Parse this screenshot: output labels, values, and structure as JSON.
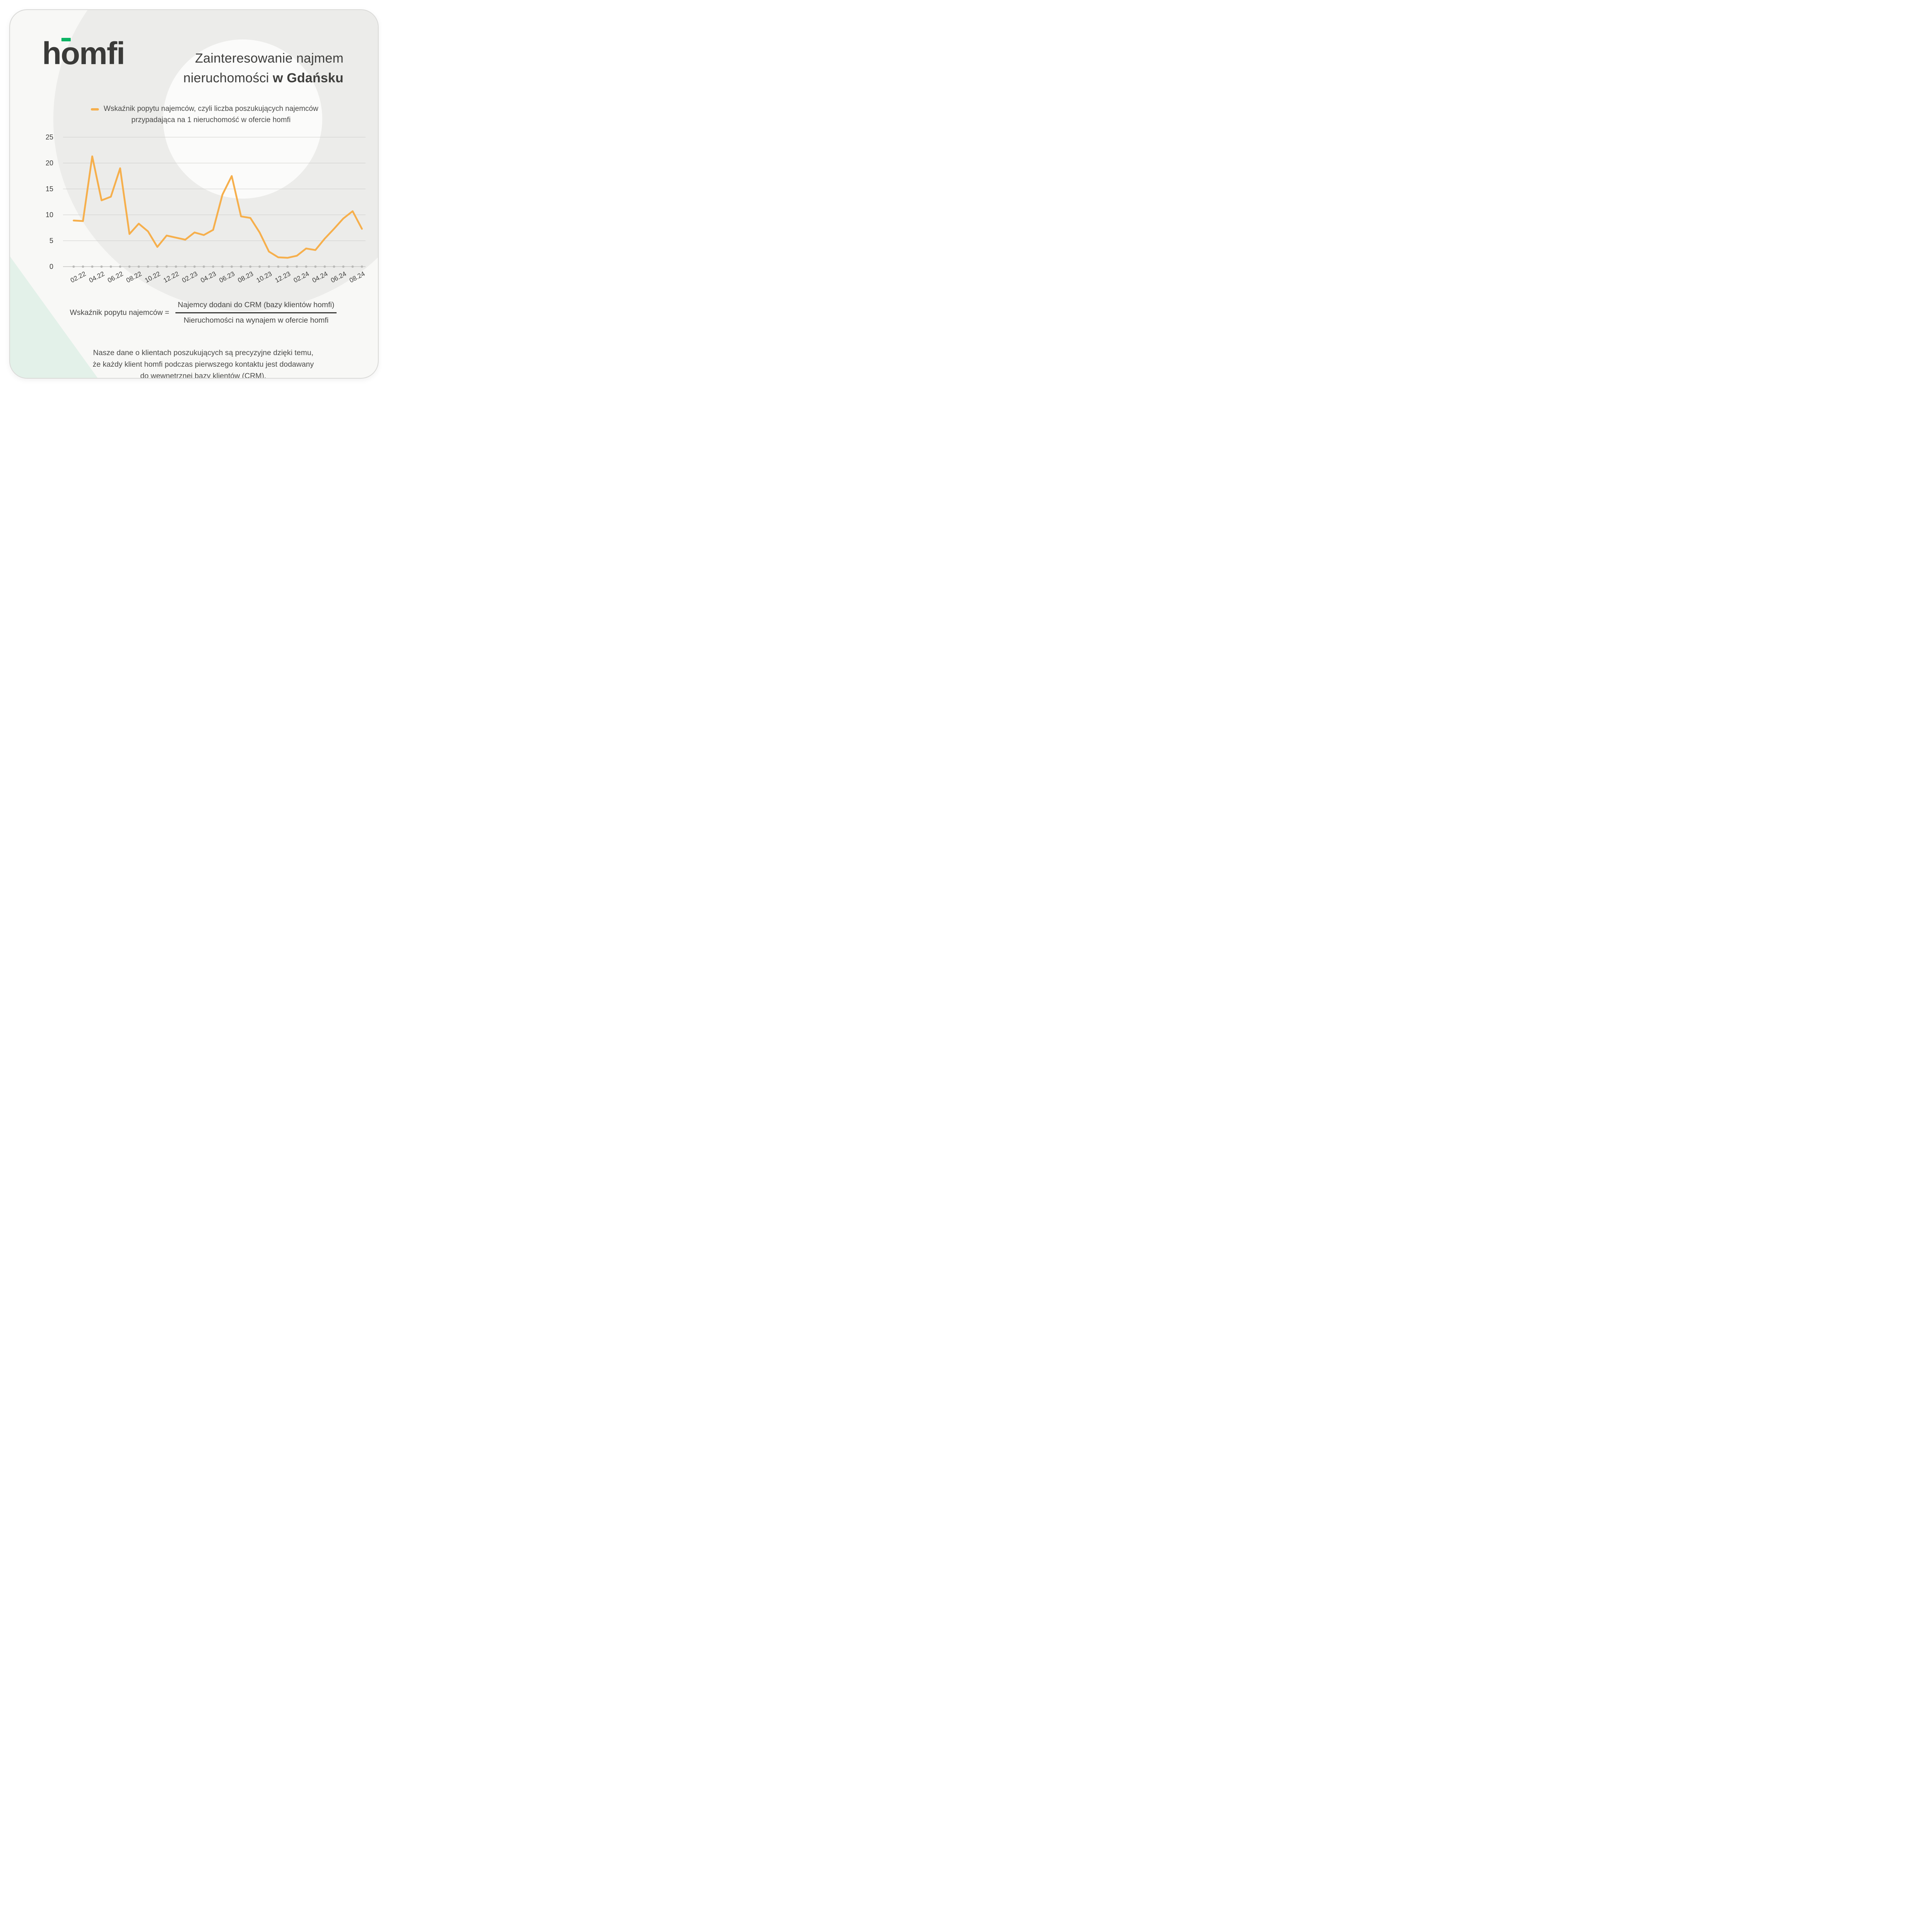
{
  "logo": {
    "text": "homfi",
    "accent_color": "#0cb464"
  },
  "title": {
    "line1": "Zainteresowanie najmem",
    "line2_regular": "nieruchomości ",
    "line2_bold": "w Gdańsku"
  },
  "legend": {
    "line1": "Wskaźnik popytu najemców, czyli liczba poszukujących najemców",
    "line2": "przypadająca na 1 nieruchomość w ofercie homfi"
  },
  "chart_data": {
    "type": "line",
    "series_name": "Wskaźnik popytu najemców",
    "x": [
      "01.22",
      "02.22",
      "03.22",
      "04.22",
      "05.22",
      "06.22",
      "07.22",
      "08.22",
      "09.22",
      "10.22",
      "11.22",
      "12.22",
      "01.23",
      "02.23",
      "03.23",
      "04.23",
      "05.23",
      "06.23",
      "07.23",
      "08.23",
      "09.23",
      "10.23",
      "11.23",
      "12.23",
      "01.24",
      "02.24",
      "03.24",
      "04.24",
      "05.24",
      "06.24",
      "07.24",
      "08.24"
    ],
    "values": [
      8.9,
      8.8,
      21.3,
      12.8,
      13.5,
      19.0,
      6.3,
      8.3,
      6.8,
      3.8,
      6.0,
      5.6,
      5.2,
      6.6,
      6.1,
      7.1,
      13.9,
      17.5,
      9.7,
      9.4,
      6.6,
      2.9,
      1.8,
      1.7,
      2.1,
      3.5,
      3.2,
      5.4,
      7.3,
      9.3,
      10.7,
      7.3
    ],
    "tick_labels": [
      "02.22",
      "04.22",
      "06.22",
      "08.22",
      "10.22",
      "12.22",
      "02.23",
      "04.23",
      "06.23",
      "08.23",
      "10.23",
      "12.23",
      "02.24",
      "04.24",
      "06.24",
      "08.24"
    ],
    "ylim": [
      0,
      25
    ],
    "yticks": [
      0,
      5,
      10,
      15,
      20,
      25
    ],
    "grid": true,
    "legend_position": "top-center",
    "line_color": "#f6af4c",
    "gridline_color": "#cccccb",
    "axis_line_color": "#c3c3c1",
    "axis_dot_color": "#b9b9b7",
    "tick_text_color": "#3d3d3b"
  },
  "formula": {
    "label": "Wskaźnik popytu najemców =",
    "numerator": "Najemcy dodani do CRM (bazy klientów homfi)",
    "denominator": "Nieruchomości na wynajem w ofercie homfi"
  },
  "footnote": {
    "line1": "Nasze dane o klientach poszukujących są precyzyjne dzięki temu,",
    "line2": "że każdy klient homfi podczas pierwszego kontaktu jest dodawany",
    "line3": "do wewnętrznej bazy klientów (CRM)."
  },
  "colors": {
    "card_background": "#f8f8f6",
    "outer_circle": "#ececea",
    "inner_circle": "#fbfbfa",
    "corner_triangle": "#e3f1e9",
    "title_text": "#3e3e3c",
    "body_text": "#4a4a48",
    "accent_orange": "#f6af4c",
    "accent_green": "#0cb464"
  }
}
